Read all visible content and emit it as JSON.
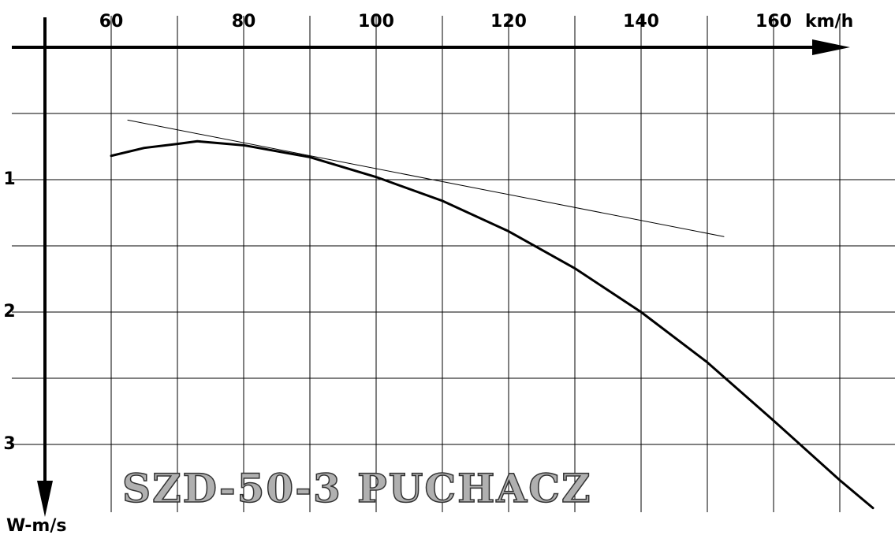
{
  "chart_data": {
    "type": "line",
    "title": "SZD-50-3 PUCHACZ",
    "x_label": "km/h",
    "y_label": "W-m/s",
    "xlim": [
      50,
      170
    ],
    "ylim": [
      0,
      3.5
    ],
    "y_inverted": true,
    "xticks": [
      60,
      80,
      100,
      120,
      140,
      160
    ],
    "yticks": [
      1,
      2,
      3
    ],
    "xgrid": [
      60,
      70,
      80,
      90,
      100,
      110,
      120,
      130,
      140,
      150,
      160,
      170
    ],
    "ygrid": [
      0.5,
      1,
      1.5,
      2,
      2.5,
      3
    ],
    "grid": true,
    "series": [
      {
        "color": "#000000",
        "width": 3,
        "x": [
          60,
          65,
          70,
          73,
          80,
          90,
          100,
          110,
          120,
          130,
          140,
          150,
          160,
          170,
          175
        ],
        "values": [
          0.82,
          0.76,
          0.73,
          0.71,
          0.74,
          0.83,
          0.98,
          1.16,
          1.39,
          1.67,
          2.0,
          2.38,
          2.82,
          3.27,
          3.48
        ]
      },
      {
        "color": "#000000",
        "width": 1,
        "x": [
          62.5,
          152.5
        ],
        "values": [
          0.55,
          1.43
        ]
      }
    ]
  }
}
